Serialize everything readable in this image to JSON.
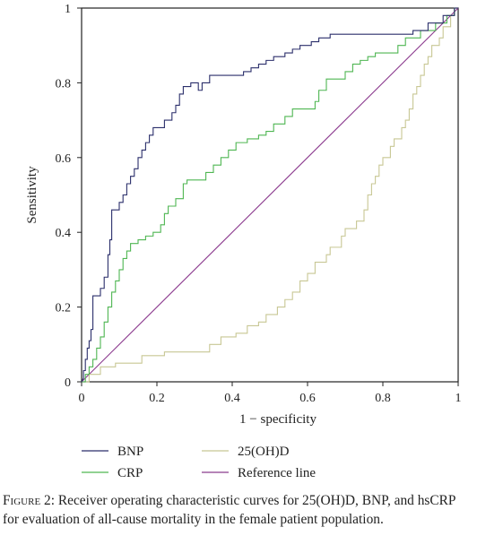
{
  "chart_data": {
    "type": "line",
    "xlabel": "1 − specificity",
    "ylabel": "Sensitivity",
    "xlim": [
      0,
      1
    ],
    "ylim": [
      0,
      1
    ],
    "x_ticks": [
      "0",
      "0.2",
      "0.4",
      "0.6",
      "0.8",
      "1"
    ],
    "y_ticks": [
      "0",
      "0.2",
      "0.4",
      "0.6",
      "0.8",
      "1"
    ],
    "grid": false,
    "legend_position": "bottom",
    "series": [
      {
        "name": "BNP",
        "color": "#2b2f6b",
        "points": [
          [
            0,
            0
          ],
          [
            0.005,
            0.01
          ],
          [
            0.005,
            0.03
          ],
          [
            0.01,
            0.03
          ],
          [
            0.01,
            0.06
          ],
          [
            0.015,
            0.06
          ],
          [
            0.015,
            0.09
          ],
          [
            0.02,
            0.09
          ],
          [
            0.02,
            0.11
          ],
          [
            0.025,
            0.11
          ],
          [
            0.025,
            0.14
          ],
          [
            0.03,
            0.14
          ],
          [
            0.03,
            0.23
          ],
          [
            0.05,
            0.23
          ],
          [
            0.05,
            0.25
          ],
          [
            0.06,
            0.25
          ],
          [
            0.06,
            0.28
          ],
          [
            0.07,
            0.28
          ],
          [
            0.07,
            0.34
          ],
          [
            0.075,
            0.34
          ],
          [
            0.075,
            0.38
          ],
          [
            0.08,
            0.38
          ],
          [
            0.08,
            0.46
          ],
          [
            0.1,
            0.46
          ],
          [
            0.1,
            0.48
          ],
          [
            0.11,
            0.48
          ],
          [
            0.11,
            0.5
          ],
          [
            0.12,
            0.5
          ],
          [
            0.12,
            0.53
          ],
          [
            0.13,
            0.53
          ],
          [
            0.13,
            0.55
          ],
          [
            0.14,
            0.55
          ],
          [
            0.14,
            0.57
          ],
          [
            0.15,
            0.57
          ],
          [
            0.15,
            0.6
          ],
          [
            0.16,
            0.6
          ],
          [
            0.16,
            0.62
          ],
          [
            0.17,
            0.62
          ],
          [
            0.17,
            0.64
          ],
          [
            0.18,
            0.64
          ],
          [
            0.18,
            0.66
          ],
          [
            0.19,
            0.66
          ],
          [
            0.19,
            0.68
          ],
          [
            0.22,
            0.68
          ],
          [
            0.22,
            0.7
          ],
          [
            0.24,
            0.7
          ],
          [
            0.24,
            0.72
          ],
          [
            0.25,
            0.72
          ],
          [
            0.25,
            0.74
          ],
          [
            0.26,
            0.74
          ],
          [
            0.26,
            0.77
          ],
          [
            0.27,
            0.77
          ],
          [
            0.27,
            0.79
          ],
          [
            0.29,
            0.79
          ],
          [
            0.29,
            0.8
          ],
          [
            0.31,
            0.8
          ],
          [
            0.31,
            0.78
          ],
          [
            0.32,
            0.78
          ],
          [
            0.32,
            0.8
          ],
          [
            0.34,
            0.8
          ],
          [
            0.34,
            0.82
          ],
          [
            0.43,
            0.82
          ],
          [
            0.43,
            0.83
          ],
          [
            0.45,
            0.83
          ],
          [
            0.45,
            0.84
          ],
          [
            0.47,
            0.84
          ],
          [
            0.47,
            0.85
          ],
          [
            0.49,
            0.85
          ],
          [
            0.49,
            0.86
          ],
          [
            0.51,
            0.86
          ],
          [
            0.51,
            0.87
          ],
          [
            0.54,
            0.87
          ],
          [
            0.54,
            0.88
          ],
          [
            0.56,
            0.88
          ],
          [
            0.56,
            0.89
          ],
          [
            0.58,
            0.89
          ],
          [
            0.58,
            0.9
          ],
          [
            0.61,
            0.9
          ],
          [
            0.61,
            0.91
          ],
          [
            0.63,
            0.91
          ],
          [
            0.63,
            0.92
          ],
          [
            0.66,
            0.92
          ],
          [
            0.66,
            0.93
          ],
          [
            0.88,
            0.93
          ],
          [
            0.88,
            0.94
          ],
          [
            0.92,
            0.94
          ],
          [
            0.92,
            0.96
          ],
          [
            0.96,
            0.96
          ],
          [
            0.96,
            0.98
          ],
          [
            0.99,
            0.98
          ],
          [
            0.99,
            1
          ],
          [
            1,
            1
          ]
        ]
      },
      {
        "name": "CRP",
        "color": "#4fb652",
        "points": [
          [
            0,
            0
          ],
          [
            0.01,
            0
          ],
          [
            0.01,
            0.02
          ],
          [
            0.02,
            0.02
          ],
          [
            0.02,
            0.04
          ],
          [
            0.03,
            0.04
          ],
          [
            0.03,
            0.06
          ],
          [
            0.04,
            0.06
          ],
          [
            0.04,
            0.09
          ],
          [
            0.05,
            0.09
          ],
          [
            0.05,
            0.12
          ],
          [
            0.06,
            0.12
          ],
          [
            0.06,
            0.16
          ],
          [
            0.07,
            0.16
          ],
          [
            0.07,
            0.2
          ],
          [
            0.08,
            0.2
          ],
          [
            0.08,
            0.24
          ],
          [
            0.09,
            0.24
          ],
          [
            0.09,
            0.27
          ],
          [
            0.1,
            0.27
          ],
          [
            0.1,
            0.3
          ],
          [
            0.11,
            0.3
          ],
          [
            0.11,
            0.33
          ],
          [
            0.12,
            0.33
          ],
          [
            0.12,
            0.35
          ],
          [
            0.13,
            0.35
          ],
          [
            0.13,
            0.37
          ],
          [
            0.15,
            0.37
          ],
          [
            0.15,
            0.38
          ],
          [
            0.17,
            0.38
          ],
          [
            0.17,
            0.39
          ],
          [
            0.19,
            0.39
          ],
          [
            0.19,
            0.4
          ],
          [
            0.21,
            0.4
          ],
          [
            0.21,
            0.42
          ],
          [
            0.22,
            0.42
          ],
          [
            0.22,
            0.45
          ],
          [
            0.23,
            0.45
          ],
          [
            0.23,
            0.47
          ],
          [
            0.25,
            0.47
          ],
          [
            0.25,
            0.49
          ],
          [
            0.27,
            0.49
          ],
          [
            0.27,
            0.53
          ],
          [
            0.28,
            0.53
          ],
          [
            0.28,
            0.54
          ],
          [
            0.33,
            0.54
          ],
          [
            0.33,
            0.56
          ],
          [
            0.35,
            0.56
          ],
          [
            0.35,
            0.58
          ],
          [
            0.37,
            0.58
          ],
          [
            0.37,
            0.6
          ],
          [
            0.39,
            0.6
          ],
          [
            0.39,
            0.62
          ],
          [
            0.41,
            0.62
          ],
          [
            0.41,
            0.64
          ],
          [
            0.44,
            0.64
          ],
          [
            0.44,
            0.65
          ],
          [
            0.47,
            0.65
          ],
          [
            0.47,
            0.66
          ],
          [
            0.49,
            0.66
          ],
          [
            0.49,
            0.67
          ],
          [
            0.51,
            0.67
          ],
          [
            0.51,
            0.69
          ],
          [
            0.54,
            0.69
          ],
          [
            0.54,
            0.71
          ],
          [
            0.56,
            0.71
          ],
          [
            0.56,
            0.73
          ],
          [
            0.62,
            0.73
          ],
          [
            0.62,
            0.75
          ],
          [
            0.63,
            0.75
          ],
          [
            0.63,
            0.78
          ],
          [
            0.65,
            0.78
          ],
          [
            0.65,
            0.81
          ],
          [
            0.7,
            0.81
          ],
          [
            0.7,
            0.83
          ],
          [
            0.72,
            0.83
          ],
          [
            0.72,
            0.85
          ],
          [
            0.74,
            0.85
          ],
          [
            0.74,
            0.86
          ],
          [
            0.76,
            0.86
          ],
          [
            0.76,
            0.87
          ],
          [
            0.78,
            0.87
          ],
          [
            0.78,
            0.88
          ],
          [
            0.84,
            0.88
          ],
          [
            0.84,
            0.9
          ],
          [
            0.86,
            0.9
          ],
          [
            0.86,
            0.92
          ],
          [
            0.9,
            0.92
          ],
          [
            0.9,
            0.94
          ],
          [
            0.94,
            0.94
          ],
          [
            0.94,
            0.96
          ],
          [
            0.97,
            0.96
          ],
          [
            0.97,
            0.98
          ],
          [
            0.99,
            0.98
          ],
          [
            0.99,
            1
          ],
          [
            1,
            1
          ]
        ]
      },
      {
        "name": "25(OH)D",
        "color": "#c8c794",
        "points": [
          [
            0,
            0
          ],
          [
            0.02,
            0
          ],
          [
            0.02,
            0.02
          ],
          [
            0.05,
            0.02
          ],
          [
            0.05,
            0.04
          ],
          [
            0.09,
            0.04
          ],
          [
            0.09,
            0.05
          ],
          [
            0.16,
            0.05
          ],
          [
            0.16,
            0.07
          ],
          [
            0.22,
            0.07
          ],
          [
            0.22,
            0.08
          ],
          [
            0.34,
            0.08
          ],
          [
            0.34,
            0.1
          ],
          [
            0.37,
            0.1
          ],
          [
            0.37,
            0.12
          ],
          [
            0.41,
            0.12
          ],
          [
            0.41,
            0.13
          ],
          [
            0.44,
            0.13
          ],
          [
            0.44,
            0.15
          ],
          [
            0.47,
            0.15
          ],
          [
            0.47,
            0.16
          ],
          [
            0.49,
            0.16
          ],
          [
            0.49,
            0.18
          ],
          [
            0.52,
            0.18
          ],
          [
            0.52,
            0.2
          ],
          [
            0.54,
            0.2
          ],
          [
            0.54,
            0.22
          ],
          [
            0.56,
            0.22
          ],
          [
            0.56,
            0.24
          ],
          [
            0.58,
            0.24
          ],
          [
            0.58,
            0.27
          ],
          [
            0.6,
            0.27
          ],
          [
            0.6,
            0.29
          ],
          [
            0.62,
            0.29
          ],
          [
            0.62,
            0.32
          ],
          [
            0.65,
            0.32
          ],
          [
            0.65,
            0.34
          ],
          [
            0.66,
            0.34
          ],
          [
            0.66,
            0.36
          ],
          [
            0.69,
            0.36
          ],
          [
            0.69,
            0.39
          ],
          [
            0.7,
            0.39
          ],
          [
            0.7,
            0.41
          ],
          [
            0.73,
            0.41
          ],
          [
            0.73,
            0.43
          ],
          [
            0.75,
            0.43
          ],
          [
            0.75,
            0.46
          ],
          [
            0.76,
            0.46
          ],
          [
            0.76,
            0.5
          ],
          [
            0.77,
            0.5
          ],
          [
            0.77,
            0.53
          ],
          [
            0.78,
            0.53
          ],
          [
            0.78,
            0.55
          ],
          [
            0.79,
            0.55
          ],
          [
            0.79,
            0.58
          ],
          [
            0.8,
            0.58
          ],
          [
            0.8,
            0.6
          ],
          [
            0.82,
            0.6
          ],
          [
            0.82,
            0.63
          ],
          [
            0.83,
            0.63
          ],
          [
            0.83,
            0.65
          ],
          [
            0.85,
            0.65
          ],
          [
            0.85,
            0.68
          ],
          [
            0.86,
            0.68
          ],
          [
            0.86,
            0.7
          ],
          [
            0.87,
            0.7
          ],
          [
            0.87,
            0.73
          ],
          [
            0.88,
            0.73
          ],
          [
            0.88,
            0.77
          ],
          [
            0.89,
            0.77
          ],
          [
            0.89,
            0.79
          ],
          [
            0.9,
            0.79
          ],
          [
            0.9,
            0.82
          ],
          [
            0.91,
            0.82
          ],
          [
            0.91,
            0.85
          ],
          [
            0.92,
            0.85
          ],
          [
            0.92,
            0.87
          ],
          [
            0.93,
            0.87
          ],
          [
            0.93,
            0.9
          ],
          [
            0.95,
            0.9
          ],
          [
            0.95,
            0.92
          ],
          [
            0.96,
            0.92
          ],
          [
            0.96,
            0.95
          ],
          [
            0.98,
            0.95
          ],
          [
            0.98,
            0.98
          ],
          [
            0.99,
            0.98
          ],
          [
            0.99,
            1
          ],
          [
            1,
            1
          ]
        ]
      },
      {
        "name": "Reference line",
        "color": "#8b3a8e",
        "points": [
          [
            0,
            0
          ],
          [
            1,
            1
          ]
        ]
      }
    ]
  },
  "caption": {
    "label": "Figure 2:",
    "text": " Receiver operating characteristic curves for 25(OH)D, BNP, and hsCRP for evaluation of all-cause mortality in the female patient population."
  }
}
